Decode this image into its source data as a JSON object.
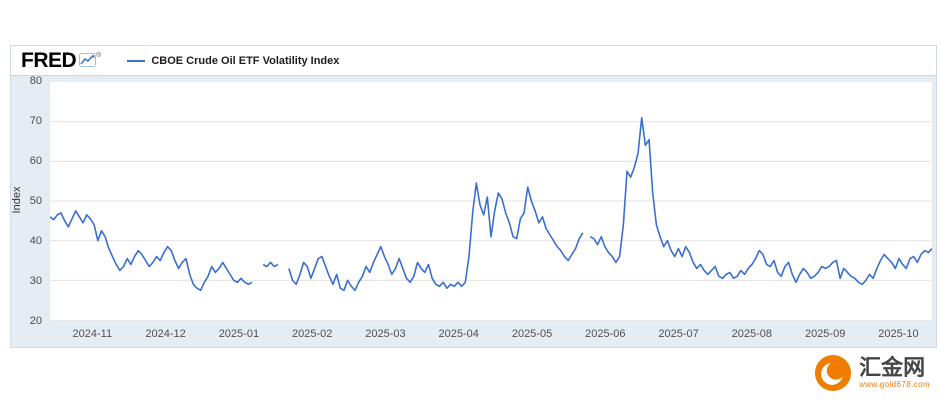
{
  "header": {
    "logo_text": "FRED",
    "registered": "®",
    "legend_label": "CBOE Crude Oil ETF Volatility Index"
  },
  "colors": {
    "line": "#3a6fd0",
    "frame_bg": "#e4edf4",
    "watermark_orange": "#f07d00"
  },
  "axis": {
    "y_title": "Index"
  },
  "watermark": {
    "name": "汇金网",
    "url": "www.gold678.com"
  },
  "chart_data": {
    "type": "line",
    "title": "CBOE Crude Oil ETF Volatility Index",
    "xlabel": "",
    "ylabel": "Index",
    "ylim": [
      20,
      80
    ],
    "y_ticks": [
      20,
      30,
      40,
      50,
      60,
      70,
      80
    ],
    "grid": "horizontal",
    "legend_position": "top-left",
    "x_tick_labels": [
      "2024-11",
      "2024-12",
      "2025-01",
      "2025-02",
      "2025-03",
      "2025-04",
      "2025-05",
      "2025-06",
      "2025-07",
      "2025-08",
      "2025-09",
      "2025-10"
    ],
    "x_range_note": "daily observations, evenly spaced",
    "series": [
      {
        "name": "CBOE Crude Oil ETF Volatility Index",
        "values": [
          46.0,
          45.3,
          46.5,
          47.0,
          45.0,
          43.5,
          45.5,
          47.5,
          46.0,
          44.5,
          46.5,
          45.5,
          44.0,
          40.0,
          42.5,
          41.0,
          38.0,
          36.0,
          34.0,
          32.5,
          33.5,
          35.5,
          34.0,
          36.0,
          37.5,
          36.5,
          35.0,
          33.5,
          34.5,
          36.0,
          35.0,
          37.0,
          38.5,
          37.5,
          35.0,
          33.0,
          34.5,
          35.5,
          31.5,
          29.0,
          28.0,
          27.5,
          29.5,
          31.0,
          33.5,
          32.0,
          33.0,
          34.5,
          33.0,
          31.5,
          30.0,
          29.5,
          30.5,
          29.5,
          29.0,
          29.5,
          null,
          null,
          34.0,
          33.5,
          34.5,
          33.5,
          34.0,
          null,
          null,
          33.0,
          30.0,
          29.0,
          31.5,
          34.5,
          33.5,
          30.5,
          33.0,
          35.5,
          36.0,
          33.5,
          31.0,
          29.0,
          31.5,
          28.0,
          27.5,
          30.0,
          28.5,
          27.5,
          29.5,
          31.0,
          33.5,
          32.0,
          34.5,
          36.5,
          38.5,
          36.0,
          34.0,
          31.5,
          33.0,
          35.5,
          33.0,
          30.5,
          29.5,
          31.0,
          34.5,
          33.0,
          32.0,
          34.0,
          30.5,
          29.0,
          28.5,
          29.5,
          28.0,
          29.0,
          28.5,
          29.5,
          28.5,
          29.5,
          36.0,
          47.0,
          54.5,
          49.0,
          46.5,
          51.0,
          41.0,
          47.5,
          52.0,
          50.5,
          47.0,
          44.5,
          41.0,
          40.5,
          45.5,
          47.0,
          53.5,
          50.0,
          47.5,
          44.5,
          46.0,
          43.0,
          41.5,
          40.0,
          38.5,
          37.5,
          36.0,
          35.0,
          36.5,
          38.0,
          40.5,
          42.0,
          null,
          41.0,
          40.5,
          39.0,
          41.0,
          38.5,
          37.0,
          36.0,
          34.5,
          36.0,
          44.0,
          57.5,
          56.0,
          58.5,
          62.0,
          71.0,
          64.0,
          65.5,
          52.0,
          44.0,
          41.0,
          38.5,
          40.0,
          37.5,
          36.0,
          38.0,
          36.0,
          38.5,
          37.0,
          34.5,
          33.0,
          34.0,
          32.5,
          31.5,
          32.5,
          33.5,
          31.0,
          30.5,
          31.5,
          32.0,
          30.5,
          31.0,
          32.5,
          31.5,
          33.0,
          34.0,
          35.5,
          37.5,
          36.5,
          34.0,
          33.5,
          35.0,
          32.0,
          31.0,
          33.5,
          34.5,
          31.5,
          29.5,
          31.5,
          33.0,
          32.0,
          30.5,
          31.0,
          32.0,
          33.5,
          33.0,
          33.5,
          34.5,
          35.0,
          30.5,
          33.0,
          32.0,
          31.0,
          30.5,
          29.5,
          29.0,
          30.0,
          31.5,
          30.5,
          33.0,
          35.0,
          36.5,
          35.5,
          34.5,
          33.0,
          35.5,
          34.0,
          33.0,
          35.5,
          36.0,
          34.5,
          36.5,
          37.5,
          37.0,
          38.0
        ]
      }
    ]
  }
}
